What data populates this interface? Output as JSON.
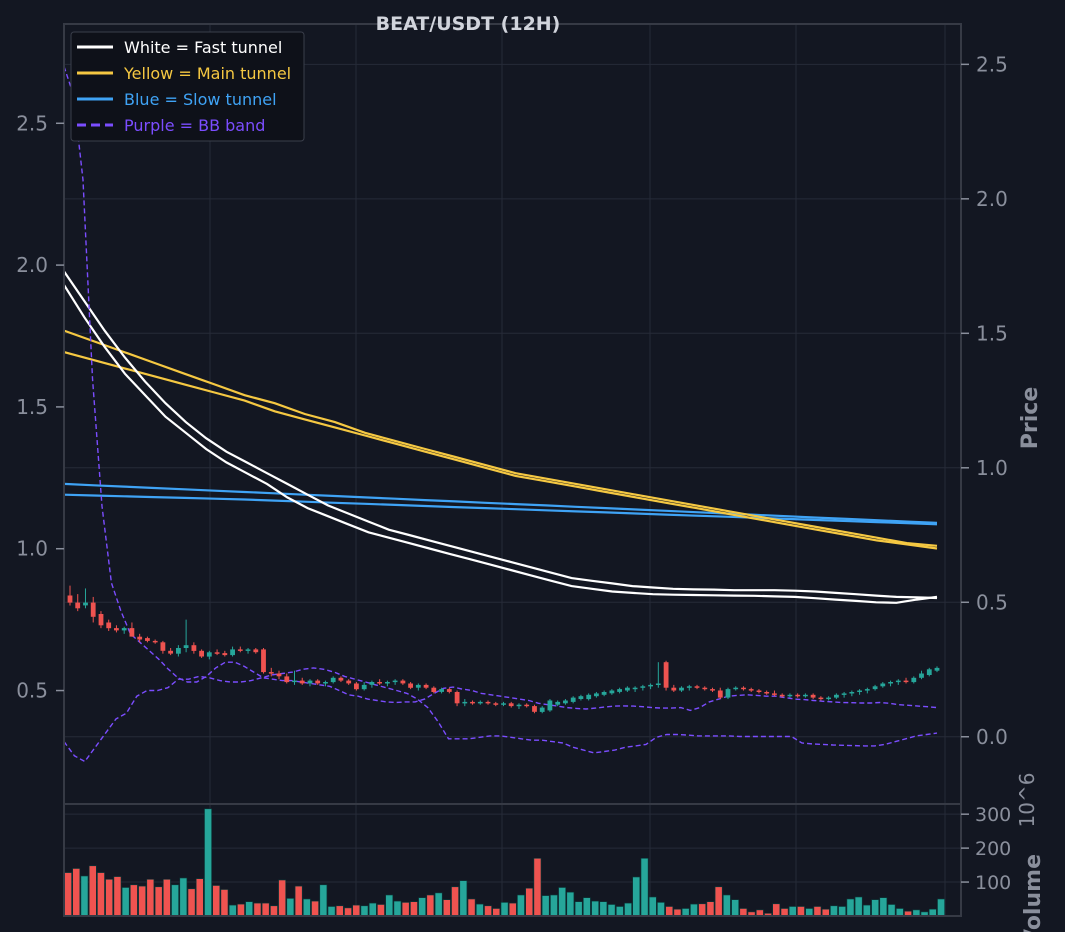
{
  "chart_data": {
    "type": "candlestick",
    "title": "BEAT/USDT (12H)",
    "ylabel_right": "Price",
    "volume_label": "Volume",
    "volume_exponent_label": "10^6",
    "left_axis": {
      "range": [
        0.1,
        2.85
      ],
      "ticks": [
        "0.5",
        "1.0",
        "1.5",
        "2.0",
        "2.5"
      ]
    },
    "right_axis": {
      "range": [
        -0.25,
        2.65
      ],
      "ticks": [
        "0.0",
        "0.5",
        "1.0",
        "1.5",
        "2.0",
        "2.5"
      ]
    },
    "volume_axis": {
      "range": [
        0,
        330
      ],
      "ticks": [
        "100",
        "200",
        "300"
      ]
    },
    "grid": true,
    "legend_position": "top-left",
    "legend": [
      {
        "label": "White = Fast tunnel",
        "color": "#ffffff",
        "dashed": false
      },
      {
        "label": "Yellow = Main tunnel",
        "color": "#f5c842",
        "dashed": false
      },
      {
        "label": "Blue = Slow tunnel",
        "color": "#3fa3f5",
        "dashed": false
      },
      {
        "label": "Purple = BB band",
        "color": "#7b4dff",
        "dashed": true
      }
    ],
    "colors": {
      "up": "#26a69a",
      "down": "#ef5350",
      "background": "#131722",
      "grid": "#262b38",
      "axis_text": "#8a8f9c"
    },
    "candles": [
      {
        "o": 0.835,
        "h": 0.87,
        "l": 0.8,
        "c": 0.81
      },
      {
        "o": 0.81,
        "h": 0.84,
        "l": 0.78,
        "c": 0.79
      },
      {
        "o": 0.8,
        "h": 0.86,
        "l": 0.79,
        "c": 0.81
      },
      {
        "o": 0.81,
        "h": 0.83,
        "l": 0.74,
        "c": 0.76
      },
      {
        "o": 0.77,
        "h": 0.78,
        "l": 0.72,
        "c": 0.73
      },
      {
        "o": 0.74,
        "h": 0.75,
        "l": 0.71,
        "c": 0.72
      },
      {
        "o": 0.72,
        "h": 0.73,
        "l": 0.705,
        "c": 0.712
      },
      {
        "o": 0.712,
        "h": 0.725,
        "l": 0.7,
        "c": 0.72
      },
      {
        "o": 0.72,
        "h": 0.74,
        "l": 0.69,
        "c": 0.69
      },
      {
        "o": 0.69,
        "h": 0.7,
        "l": 0.67,
        "c": 0.68
      },
      {
        "o": 0.685,
        "h": 0.69,
        "l": 0.67,
        "c": 0.675
      },
      {
        "o": 0.675,
        "h": 0.68,
        "l": 0.665,
        "c": 0.67
      },
      {
        "o": 0.67,
        "h": 0.675,
        "l": 0.63,
        "c": 0.64
      },
      {
        "o": 0.64,
        "h": 0.65,
        "l": 0.625,
        "c": 0.63
      },
      {
        "o": 0.63,
        "h": 0.66,
        "l": 0.62,
        "c": 0.65
      },
      {
        "o": 0.65,
        "h": 0.75,
        "l": 0.635,
        "c": 0.66
      },
      {
        "o": 0.66,
        "h": 0.67,
        "l": 0.63,
        "c": 0.64
      },
      {
        "o": 0.64,
        "h": 0.645,
        "l": 0.615,
        "c": 0.62
      },
      {
        "o": 0.62,
        "h": 0.64,
        "l": 0.61,
        "c": 0.635
      },
      {
        "o": 0.635,
        "h": 0.645,
        "l": 0.625,
        "c": 0.632
      },
      {
        "o": 0.632,
        "h": 0.64,
        "l": 0.62,
        "c": 0.625
      },
      {
        "o": 0.625,
        "h": 0.655,
        "l": 0.62,
        "c": 0.645
      },
      {
        "o": 0.645,
        "h": 0.655,
        "l": 0.635,
        "c": 0.64
      },
      {
        "o": 0.64,
        "h": 0.65,
        "l": 0.63,
        "c": 0.645
      },
      {
        "o": 0.645,
        "h": 0.65,
        "l": 0.63,
        "c": 0.635
      },
      {
        "o": 0.645,
        "h": 0.65,
        "l": 0.56,
        "c": 0.565
      },
      {
        "o": 0.565,
        "h": 0.58,
        "l": 0.55,
        "c": 0.56
      },
      {
        "o": 0.56,
        "h": 0.57,
        "l": 0.54,
        "c": 0.55
      },
      {
        "o": 0.55,
        "h": 0.56,
        "l": 0.525,
        "c": 0.53
      },
      {
        "o": 0.53,
        "h": 0.57,
        "l": 0.52,
        "c": 0.535
      },
      {
        "o": 0.535,
        "h": 0.545,
        "l": 0.52,
        "c": 0.525
      },
      {
        "o": 0.525,
        "h": 0.54,
        "l": 0.515,
        "c": 0.535
      },
      {
        "o": 0.535,
        "h": 0.54,
        "l": 0.52,
        "c": 0.525
      },
      {
        "o": 0.525,
        "h": 0.535,
        "l": 0.515,
        "c": 0.53
      },
      {
        "o": 0.53,
        "h": 0.55,
        "l": 0.525,
        "c": 0.545
      },
      {
        "o": 0.545,
        "h": 0.55,
        "l": 0.53,
        "c": 0.535
      },
      {
        "o": 0.535,
        "h": 0.54,
        "l": 0.52,
        "c": 0.525
      },
      {
        "o": 0.525,
        "h": 0.53,
        "l": 0.5,
        "c": 0.505
      },
      {
        "o": 0.505,
        "h": 0.53,
        "l": 0.5,
        "c": 0.52
      },
      {
        "o": 0.52,
        "h": 0.535,
        "l": 0.51,
        "c": 0.53
      },
      {
        "o": 0.53,
        "h": 0.54,
        "l": 0.52,
        "c": 0.525
      },
      {
        "o": 0.525,
        "h": 0.535,
        "l": 0.515,
        "c": 0.53
      },
      {
        "o": 0.53,
        "h": 0.54,
        "l": 0.52,
        "c": 0.535
      },
      {
        "o": 0.535,
        "h": 0.54,
        "l": 0.52,
        "c": 0.525
      },
      {
        "o": 0.525,
        "h": 0.53,
        "l": 0.505,
        "c": 0.51
      },
      {
        "o": 0.51,
        "h": 0.525,
        "l": 0.5,
        "c": 0.52
      },
      {
        "o": 0.52,
        "h": 0.525,
        "l": 0.505,
        "c": 0.51
      },
      {
        "o": 0.51,
        "h": 0.515,
        "l": 0.49,
        "c": 0.495
      },
      {
        "o": 0.495,
        "h": 0.51,
        "l": 0.49,
        "c": 0.505
      },
      {
        "o": 0.505,
        "h": 0.51,
        "l": 0.49,
        "c": 0.495
      },
      {
        "o": 0.495,
        "h": 0.5,
        "l": 0.445,
        "c": 0.455
      },
      {
        "o": 0.455,
        "h": 0.47,
        "l": 0.445,
        "c": 0.46
      },
      {
        "o": 0.46,
        "h": 0.465,
        "l": 0.45,
        "c": 0.455
      },
      {
        "o": 0.455,
        "h": 0.465,
        "l": 0.45,
        "c": 0.46
      },
      {
        "o": 0.46,
        "h": 0.465,
        "l": 0.45,
        "c": 0.455
      },
      {
        "o": 0.455,
        "h": 0.46,
        "l": 0.445,
        "c": 0.45
      },
      {
        "o": 0.45,
        "h": 0.46,
        "l": 0.445,
        "c": 0.455
      },
      {
        "o": 0.455,
        "h": 0.46,
        "l": 0.44,
        "c": 0.445
      },
      {
        "o": 0.445,
        "h": 0.455,
        "l": 0.435,
        "c": 0.45
      },
      {
        "o": 0.45,
        "h": 0.455,
        "l": 0.44,
        "c": 0.445
      },
      {
        "o": 0.445,
        "h": 0.45,
        "l": 0.42,
        "c": 0.425
      },
      {
        "o": 0.425,
        "h": 0.445,
        "l": 0.42,
        "c": 0.44
      },
      {
        "o": 0.43,
        "h": 0.47,
        "l": 0.425,
        "c": 0.465
      },
      {
        "o": 0.45,
        "h": 0.465,
        "l": 0.445,
        "c": 0.46
      },
      {
        "o": 0.455,
        "h": 0.47,
        "l": 0.45,
        "c": 0.465
      },
      {
        "o": 0.46,
        "h": 0.48,
        "l": 0.455,
        "c": 0.475
      },
      {
        "o": 0.47,
        "h": 0.485,
        "l": 0.465,
        "c": 0.48
      },
      {
        "o": 0.47,
        "h": 0.49,
        "l": 0.465,
        "c": 0.485
      },
      {
        "o": 0.48,
        "h": 0.495,
        "l": 0.475,
        "c": 0.49
      },
      {
        "o": 0.485,
        "h": 0.5,
        "l": 0.48,
        "c": 0.495
      },
      {
        "o": 0.49,
        "h": 0.505,
        "l": 0.485,
        "c": 0.5
      },
      {
        "o": 0.495,
        "h": 0.51,
        "l": 0.49,
        "c": 0.505
      },
      {
        "o": 0.5,
        "h": 0.515,
        "l": 0.495,
        "c": 0.51
      },
      {
        "o": 0.505,
        "h": 0.515,
        "l": 0.495,
        "c": 0.51
      },
      {
        "o": 0.51,
        "h": 0.52,
        "l": 0.5,
        "c": 0.515
      },
      {
        "o": 0.515,
        "h": 0.525,
        "l": 0.505,
        "c": 0.52
      },
      {
        "o": 0.52,
        "h": 0.6,
        "l": 0.51,
        "c": 0.525
      },
      {
        "o": 0.6,
        "h": 0.605,
        "l": 0.5,
        "c": 0.51
      },
      {
        "o": 0.51,
        "h": 0.52,
        "l": 0.495,
        "c": 0.5
      },
      {
        "o": 0.5,
        "h": 0.515,
        "l": 0.495,
        "c": 0.51
      },
      {
        "o": 0.51,
        "h": 0.52,
        "l": 0.5,
        "c": 0.515
      },
      {
        "o": 0.515,
        "h": 0.52,
        "l": 0.505,
        "c": 0.51
      },
      {
        "o": 0.51,
        "h": 0.515,
        "l": 0.5,
        "c": 0.505
      },
      {
        "o": 0.505,
        "h": 0.51,
        "l": 0.495,
        "c": 0.5
      },
      {
        "o": 0.5,
        "h": 0.51,
        "l": 0.47,
        "c": 0.475
      },
      {
        "o": 0.475,
        "h": 0.51,
        "l": 0.47,
        "c": 0.505
      },
      {
        "o": 0.505,
        "h": 0.515,
        "l": 0.5,
        "c": 0.51
      },
      {
        "o": 0.51,
        "h": 0.515,
        "l": 0.5,
        "c": 0.505
      },
      {
        "o": 0.505,
        "h": 0.51,
        "l": 0.495,
        "c": 0.5
      },
      {
        "o": 0.5,
        "h": 0.505,
        "l": 0.49,
        "c": 0.495
      },
      {
        "o": 0.495,
        "h": 0.5,
        "l": 0.485,
        "c": 0.49
      },
      {
        "o": 0.49,
        "h": 0.5,
        "l": 0.48,
        "c": 0.485
      },
      {
        "o": 0.485,
        "h": 0.49,
        "l": 0.475,
        "c": 0.48
      },
      {
        "o": 0.48,
        "h": 0.49,
        "l": 0.475,
        "c": 0.485
      },
      {
        "o": 0.485,
        "h": 0.49,
        "l": 0.475,
        "c": 0.48
      },
      {
        "o": 0.48,
        "h": 0.49,
        "l": 0.475,
        "c": 0.485
      },
      {
        "o": 0.485,
        "h": 0.49,
        "l": 0.47,
        "c": 0.475
      },
      {
        "o": 0.475,
        "h": 0.48,
        "l": 0.465,
        "c": 0.47
      },
      {
        "o": 0.47,
        "h": 0.48,
        "l": 0.465,
        "c": 0.475
      },
      {
        "o": 0.475,
        "h": 0.49,
        "l": 0.47,
        "c": 0.485
      },
      {
        "o": 0.485,
        "h": 0.495,
        "l": 0.475,
        "c": 0.49
      },
      {
        "o": 0.49,
        "h": 0.5,
        "l": 0.48,
        "c": 0.495
      },
      {
        "o": 0.495,
        "h": 0.505,
        "l": 0.485,
        "c": 0.5
      },
      {
        "o": 0.5,
        "h": 0.51,
        "l": 0.49,
        "c": 0.505
      },
      {
        "o": 0.505,
        "h": 0.52,
        "l": 0.5,
        "c": 0.515
      },
      {
        "o": 0.515,
        "h": 0.53,
        "l": 0.51,
        "c": 0.525
      },
      {
        "o": 0.525,
        "h": 0.535,
        "l": 0.515,
        "c": 0.53
      },
      {
        "o": 0.53,
        "h": 0.54,
        "l": 0.52,
        "c": 0.535
      },
      {
        "o": 0.535,
        "h": 0.545,
        "l": 0.525,
        "c": 0.53
      },
      {
        "o": 0.53,
        "h": 0.55,
        "l": 0.525,
        "c": 0.545
      },
      {
        "o": 0.545,
        "h": 0.57,
        "l": 0.54,
        "c": 0.56
      },
      {
        "o": 0.555,
        "h": 0.58,
        "l": 0.55,
        "c": 0.575
      },
      {
        "o": 0.57,
        "h": 0.585,
        "l": 0.565,
        "c": 0.58
      }
    ],
    "volume": [
      128,
      140,
      118,
      148,
      128,
      108,
      116,
      84,
      92,
      88,
      108,
      86,
      108,
      92,
      112,
      80,
      110,
      316,
      90,
      78,
      32,
      35,
      42,
      38,
      38,
      30,
      106,
      52,
      88,
      50,
      44,
      92,
      28,
      30,
      24,
      32,
      30,
      38,
      34,
      62,
      44,
      40,
      42,
      54,
      62,
      68,
      48,
      86,
      104,
      50,
      35,
      30,
      22,
      40,
      38,
      62,
      82,
      170,
      60,
      62,
      84,
      70,
      42,
      54,
      44,
      42,
      34,
      28,
      38,
      115,
      170,
      56,
      40,
      28,
      20,
      22,
      35,
      36,
      42,
      86,
      62,
      48,
      22,
      12,
      18,
      8,
      36,
      22,
      28,
      28,
      22,
      28,
      20,
      30,
      28,
      50,
      56,
      32,
      48,
      54,
      34,
      22,
      14,
      18,
      12,
      20,
      50
    ],
    "fast_tunnel": [
      [
        1.73,
        1.62,
        1.51,
        1.41,
        1.32,
        1.24,
        1.17,
        1.11,
        1.06,
        1.02,
        0.98,
        0.94,
        0.9,
        0.86,
        0.83,
        0.8,
        0.77,
        0.75,
        0.73,
        0.71,
        0.69,
        0.67,
        0.65,
        0.63,
        0.61,
        0.59,
        0.58,
        0.57,
        0.56,
        0.555,
        0.55,
        0.548,
        0.547,
        0.545,
        0.545,
        0.545,
        0.543,
        0.54,
        0.535,
        0.53,
        0.525,
        0.52,
        0.518,
        0.516
      ],
      [
        1.68,
        1.56,
        1.45,
        1.35,
        1.27,
        1.19,
        1.13,
        1.07,
        1.02,
        0.98,
        0.94,
        0.89,
        0.85,
        0.82,
        0.79,
        0.76,
        0.74,
        0.72,
        0.7,
        0.68,
        0.66,
        0.64,
        0.62,
        0.6,
        0.58,
        0.56,
        0.55,
        0.54,
        0.535,
        0.53,
        0.528,
        0.527,
        0.526,
        0.525,
        0.524,
        0.522,
        0.52,
        0.515,
        0.51,
        0.505,
        0.5,
        0.498,
        0.51,
        0.52
      ]
    ],
    "main_tunnel": [
      [
        1.51,
        1.47,
        1.43,
        1.39,
        1.35,
        1.31,
        1.27,
        1.24,
        1.2,
        1.17,
        1.13,
        1.1,
        1.07,
        1.04,
        1.01,
        0.98,
        0.96,
        0.94,
        0.92,
        0.9,
        0.88,
        0.86,
        0.84,
        0.82,
        0.8,
        0.78,
        0.76,
        0.74,
        0.72,
        0.71
      ],
      [
        1.43,
        1.4,
        1.37,
        1.34,
        1.31,
        1.28,
        1.25,
        1.21,
        1.18,
        1.15,
        1.12,
        1.09,
        1.06,
        1.03,
        1.0,
        0.97,
        0.95,
        0.93,
        0.91,
        0.89,
        0.87,
        0.85,
        0.83,
        0.81,
        0.79,
        0.77,
        0.75,
        0.73,
        0.715,
        0.7
      ]
    ],
    "slow_tunnel": [
      [
        0.94,
        0.935,
        0.93,
        0.925,
        0.92,
        0.915,
        0.91,
        0.905,
        0.9,
        0.895,
        0.89,
        0.885,
        0.88,
        0.875,
        0.87,
        0.865,
        0.86,
        0.855,
        0.85,
        0.845,
        0.84,
        0.835,
        0.83,
        0.825,
        0.82,
        0.815,
        0.81,
        0.805,
        0.8,
        0.795
      ],
      [
        0.9,
        0.897,
        0.894,
        0.891,
        0.888,
        0.885,
        0.882,
        0.878,
        0.874,
        0.87,
        0.866,
        0.862,
        0.858,
        0.854,
        0.85,
        0.846,
        0.842,
        0.838,
        0.834,
        0.83,
        0.826,
        0.822,
        0.818,
        0.814,
        0.81,
        0.806,
        0.802,
        0.798,
        0.794,
        0.79
      ]
    ],
    "bb_upper": [
      2.7,
      2.6,
      2.3,
      1.6,
      1.15,
      0.88,
      0.78,
      0.7,
      0.67,
      0.64,
      0.61,
      0.575,
      0.545,
      0.53,
      0.53,
      0.55,
      0.58,
      0.6,
      0.6,
      0.585,
      0.565,
      0.545,
      0.54,
      0.535,
      0.535,
      0.53,
      0.525,
      0.52,
      0.515,
      0.5,
      0.485,
      0.48,
      0.47,
      0.465,
      0.46,
      0.458,
      0.46,
      0.46,
      0.47,
      0.49,
      0.508,
      0.512,
      0.505,
      0.5,
      0.49,
      0.485,
      0.48,
      0.475,
      0.47,
      0.465,
      0.455,
      0.45,
      0.445,
      0.44,
      0.437,
      0.435,
      0.438,
      0.442,
      0.445,
      0.446,
      0.445,
      0.443,
      0.44,
      0.438,
      0.438,
      0.44,
      0.43,
      0.44,
      0.46,
      0.47,
      0.48,
      0.483,
      0.485,
      0.483,
      0.48,
      0.48,
      0.475,
      0.47,
      0.468,
      0.465,
      0.462,
      0.46,
      0.458,
      0.457,
      0.456,
      0.456,
      0.458,
      0.455,
      0.45,
      0.448,
      0.445,
      0.443,
      0.44
    ],
    "bb_lower": [
      0.32,
      0.27,
      0.25,
      0.3,
      0.35,
      0.4,
      0.42,
      0.48,
      0.5,
      0.5,
      0.51,
      0.54,
      0.54,
      0.55,
      0.545,
      0.535,
      0.53,
      0.53,
      0.535,
      0.545,
      0.555,
      0.56,
      0.565,
      0.575,
      0.58,
      0.575,
      0.565,
      0.55,
      0.54,
      0.53,
      0.52,
      0.51,
      0.5,
      0.49,
      0.47,
      0.44,
      0.39,
      0.33,
      0.33,
      0.33,
      0.335,
      0.34,
      0.34,
      0.335,
      0.33,
      0.325,
      0.325,
      0.32,
      0.315,
      0.3,
      0.29,
      0.28,
      0.285,
      0.29,
      0.3,
      0.305,
      0.31,
      0.335,
      0.345,
      0.345,
      0.343,
      0.34,
      0.34,
      0.34,
      0.34,
      0.338,
      0.338,
      0.338,
      0.338,
      0.338,
      0.338,
      0.315,
      0.312,
      0.31,
      0.308,
      0.307,
      0.306,
      0.305,
      0.305,
      0.31,
      0.32,
      0.33,
      0.34,
      0.345,
      0.35
    ]
  }
}
